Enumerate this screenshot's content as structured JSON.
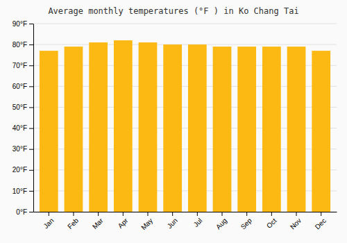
{
  "chart_data": {
    "type": "bar",
    "title": "Average monthly temperatures (°F ) in Ko Chang Tai",
    "categories": [
      "Jan",
      "Feb",
      "Mar",
      "Apr",
      "May",
      "Jun",
      "Jul",
      "Aug",
      "Sep",
      "Oct",
      "Nov",
      "Dec"
    ],
    "values": [
      77,
      79,
      81,
      82,
      81,
      80,
      80,
      79,
      79,
      79,
      79,
      77
    ],
    "color": "#FDB913",
    "ylim": [
      0,
      90
    ],
    "yticks": [
      {
        "value": 0,
        "label": "0°F"
      },
      {
        "value": 10,
        "label": "10°F"
      },
      {
        "value": 20,
        "label": "20°F"
      },
      {
        "value": 30,
        "label": "30°F"
      },
      {
        "value": 40,
        "label": "40°F"
      },
      {
        "value": 50,
        "label": "50°F"
      },
      {
        "value": 60,
        "label": "60°F"
      },
      {
        "value": 70,
        "label": "70°F"
      },
      {
        "value": 80,
        "label": "80°F"
      },
      {
        "value": 90,
        "label": "90°F"
      }
    ],
    "grid": true
  }
}
